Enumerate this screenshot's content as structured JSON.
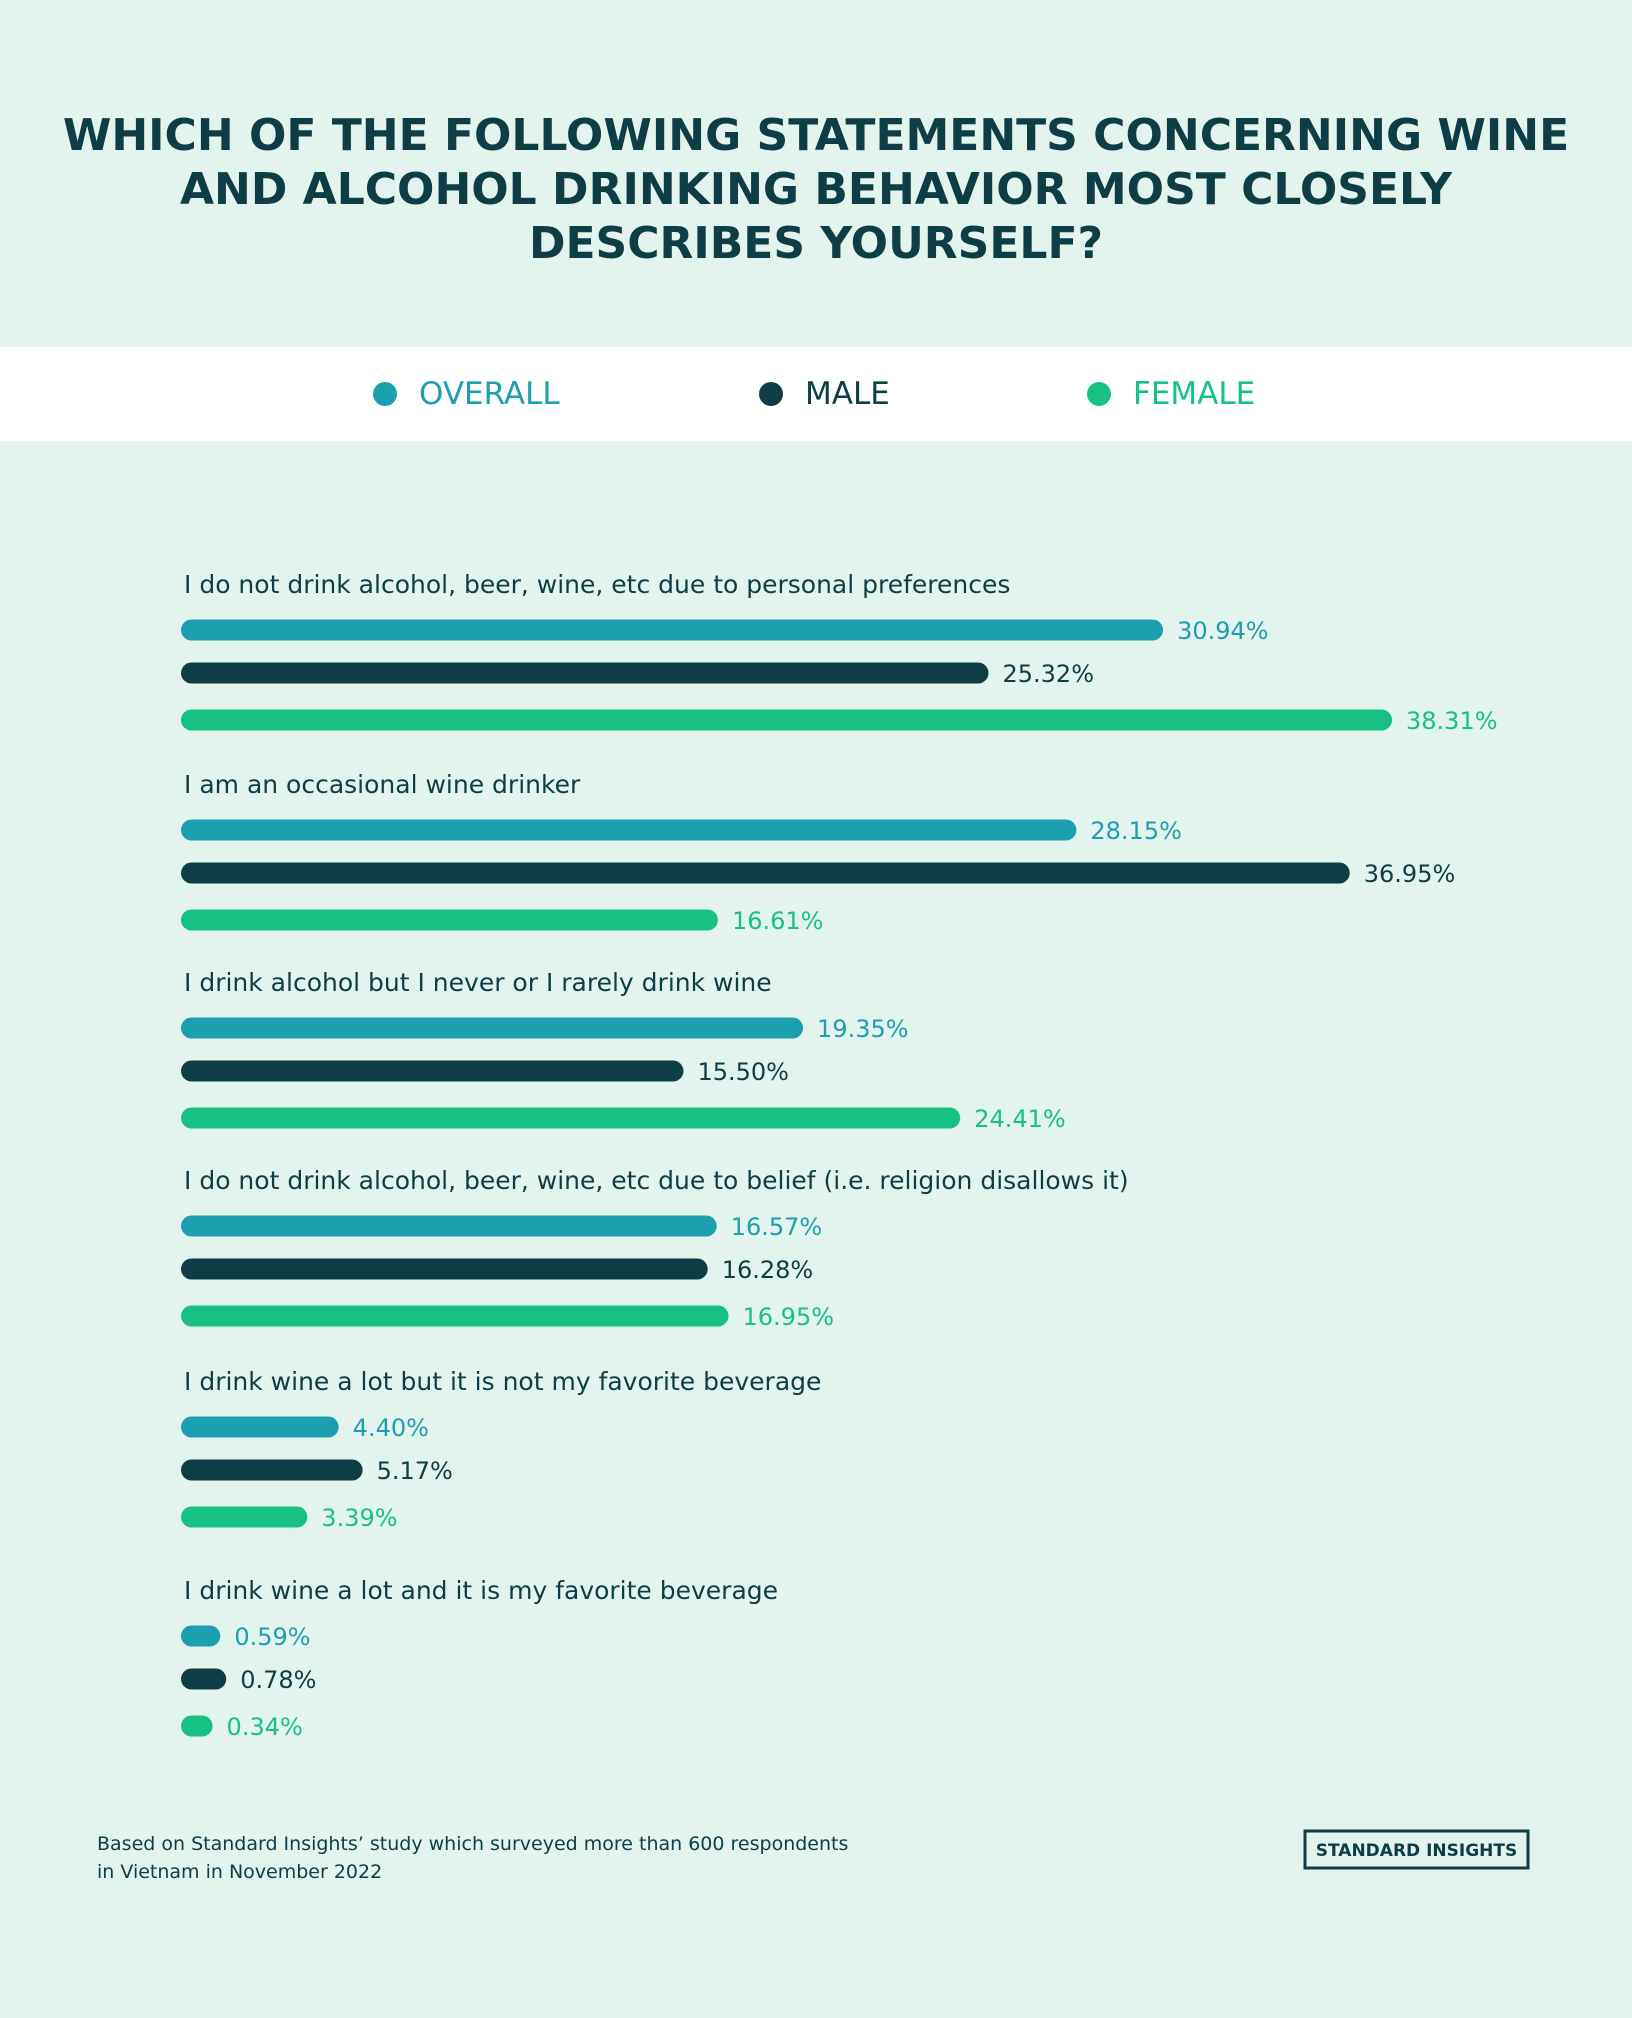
{
  "chart_data": {
    "type": "bar",
    "orientation": "horizontal",
    "title": [
      "WHICH OF THE FOLLOWING STATEMENTS CONCERNING WINE",
      "AND ALCOHOL DRINKING BEHAVIOR MOST CLOSELY",
      "DESCRIBES YOURSELF?"
    ],
    "categories": [
      "I do not drink alcohol, beer, wine, etc due to personal preferences",
      "I am an occasional wine drinker",
      "I drink alcohol but I never or I rarely drink wine",
      "I do not drink alcohol, beer, wine, etc due to belief (i.e. religion disallows it)",
      "I drink wine a lot but it is not my favorite beverage",
      "I drink wine a lot and it is my favorite beverage"
    ],
    "series": [
      {
        "name": "OVERALL",
        "color": "#1c9fae",
        "values": [
          30.94,
          28.15,
          19.35,
          16.57,
          4.4,
          0.59
        ],
        "value_labels": [
          "30.94%",
          "28.15%",
          "19.35%",
          "16.57%",
          "4.40%",
          "0.59%"
        ]
      },
      {
        "name": "MALE",
        "color": "#0e3d46",
        "values": [
          25.32,
          36.95,
          15.5,
          16.28,
          5.17,
          0.78
        ],
        "value_labels": [
          "25.32%",
          "36.95%",
          "15.50%",
          "16.28%",
          "5.17%",
          "0.78%"
        ]
      },
      {
        "name": "FEMALE",
        "color": "#17c184",
        "values": [
          38.31,
          16.61,
          24.41,
          16.95,
          3.39,
          0.34
        ],
        "value_labels": [
          "38.31%",
          "16.61%",
          "24.41%",
          "16.95%",
          "3.39%",
          "0.34%"
        ]
      }
    ],
    "footnote": [
      "Based on Standard Insights’ study which surveyed more than 600 respondents",
      "in Vietnam in November 2022"
    ],
    "logo": "STANDARD INSIGHTS"
  }
}
